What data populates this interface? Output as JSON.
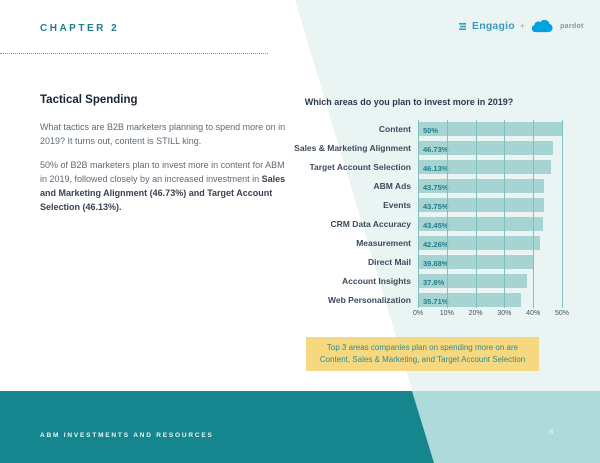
{
  "page": {
    "chapter_label": "CHAPTER 2",
    "footer_label": "ABM INVESTMENTS AND RESOURCES",
    "page_number": "8"
  },
  "logos": {
    "engagio": "Engagio",
    "plus": "+",
    "pardot": "pardot"
  },
  "left_column": {
    "heading": "Tactical Spending",
    "para1": "What tactics are B2B marketers planning to spend more on in 2019? It turns out, content is STILL king.",
    "para2_normal": "50% of B2B marketers plan to invest more in content for ABM in 2019, followed closely by an increased investment in ",
    "para2_bold": "Sales and Marketing Alignment (46.73%) and Target Account Selection (46.13%)."
  },
  "chart_data": {
    "type": "bar",
    "orientation": "horizontal",
    "title": "Which areas do you plan to invest more in 2019?",
    "categories": [
      "Content",
      "Sales & Marketing Alignment",
      "Target Account Selection",
      "ABM Ads",
      "Events",
      "CRM Data Accuracy",
      "Measurement",
      "Direct Mail",
      "Account Insights",
      "Web Personalization"
    ],
    "values": [
      50,
      46.73,
      46.13,
      43.75,
      43.75,
      43.45,
      42.26,
      39.88,
      37.8,
      35.71
    ],
    "value_labels": [
      "50%",
      "46.73%",
      "46.13%",
      "43.75%",
      "43.75%",
      "43.45%",
      "42.26%",
      "39.88%",
      "37.8%",
      "35.71%"
    ],
    "x_ticks": [
      "0%",
      "10%",
      "20%",
      "30%",
      "40%",
      "50%"
    ],
    "xlim": [
      0,
      50
    ],
    "grid": true,
    "legend": "none"
  },
  "callout": {
    "text": "Top 3 areas companies plan on spending more on are Content, Sales & Marketing, and Target Account Selection"
  },
  "colors": {
    "teal_dark_footer": "#15858e",
    "teal_light_band": "#aedadb",
    "pale_wedge": "#e9f4f3",
    "bar_fill": "#a6d4d3",
    "gridline": "#7cc0bf",
    "bar_value_text": "#217f8a",
    "heading_teal": "#1e7d8d",
    "callout_bg": "#f6d880",
    "callout_text": "#2f8b91",
    "engagio_blue": "#3a9cba",
    "salesforce_blue": "#00a1e0"
  }
}
